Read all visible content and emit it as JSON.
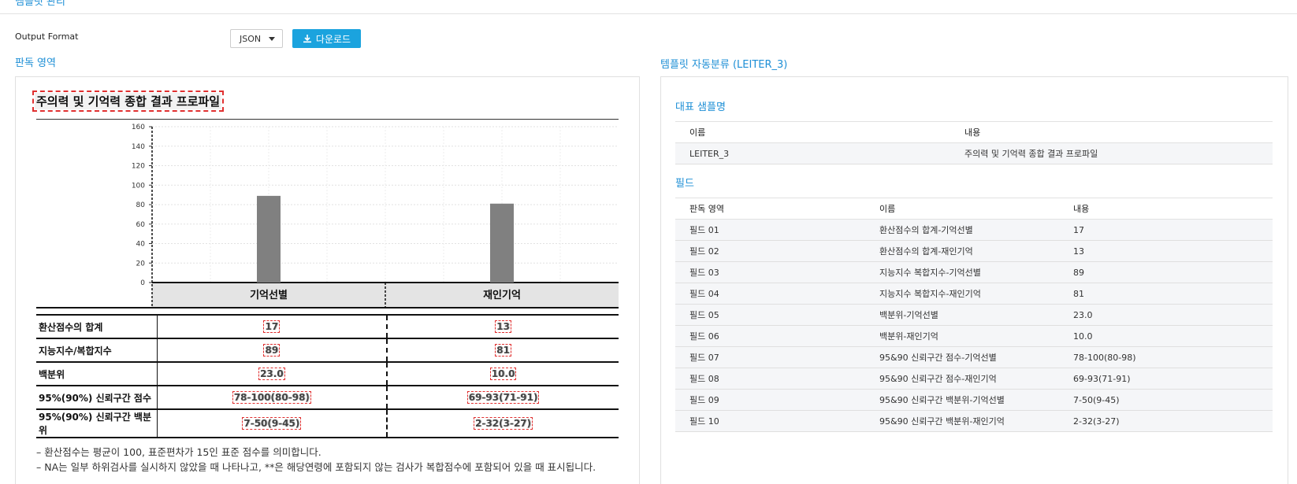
{
  "header": {
    "breadcrumb": "템플릿 관리"
  },
  "toolbar": {
    "format_label": "Output Format",
    "format_value": "JSON",
    "download_label": "다운로드"
  },
  "left": {
    "section_title": "판독 영역",
    "doc_title": "주의력 및 기억력 종합 결과 프로파일",
    "table": {
      "rows": [
        {
          "label": "환산점수의 합계",
          "c1": "17",
          "c2": "13"
        },
        {
          "label": "지능지수/복합지수",
          "c1": "89",
          "c2": "81"
        },
        {
          "label": "백분위",
          "c1": "23.0",
          "c2": "10.0"
        },
        {
          "label": "95%(90%) 신뢰구간 점수",
          "c1": "78-100(80-98)",
          "c2": "69-93(71-91)"
        },
        {
          "label": "95%(90%) 신뢰구간 백분위",
          "c1": "7-50(9-45)",
          "c2": "2-32(3-27)"
        }
      ]
    },
    "notes": [
      "– 환산점수는 평균이 100, 표준편차가 15인 표준 점수를 의미합니다.",
      "– NA는 일부 하위검사를 실시하지 않았을 때 나타나고, **은 해당연령에 포함되지 않는 검사가 복합점수에 포함되어 있을 때 표시됩니다."
    ]
  },
  "chart_data": {
    "type": "bar",
    "categories": [
      "기억선별",
      "재인기억"
    ],
    "values": [
      89,
      81
    ],
    "ylim": [
      0,
      160
    ],
    "yticks": [
      0,
      20,
      40,
      60,
      80,
      100,
      120,
      140,
      160
    ],
    "title": "",
    "xlabel": "",
    "ylabel": "",
    "bar_color": "#808080"
  },
  "right": {
    "section_title": "템플릿 자동분류 (LEITER_3)",
    "sample": {
      "heading": "대표 샘플명",
      "headers": [
        "이름",
        "내용"
      ],
      "rows": [
        {
          "name": "LEITER_3",
          "content": "주의력 및 기억력 종합 결과 프로파일"
        }
      ]
    },
    "fields": {
      "heading": "필드",
      "headers": [
        "판독 영역",
        "이름",
        "내용"
      ],
      "rows": [
        {
          "area": "필드 01",
          "name": "환산점수의 합계-기억선별",
          "content": "17"
        },
        {
          "area": "필드 02",
          "name": "환산점수의 합계-재인기억",
          "content": "13"
        },
        {
          "area": "필드 03",
          "name": "지능지수 복합지수-기억선별",
          "content": "89"
        },
        {
          "area": "필드 04",
          "name": "지능지수 복합지수-재인기억",
          "content": "81"
        },
        {
          "area": "필드 05",
          "name": "백분위-기억선별",
          "content": "23.0"
        },
        {
          "area": "필드 06",
          "name": "백분위-재인기억",
          "content": "10.0"
        },
        {
          "area": "필드 07",
          "name": "95&90 신뢰구간 점수-기억선별",
          "content": "78-100(80-98)"
        },
        {
          "area": "필드 08",
          "name": "95&90 신뢰구간 점수-재인기억",
          "content": "69-93(71-91)"
        },
        {
          "area": "필드 09",
          "name": "95&90 신뢰구간 백분위-기억선별",
          "content": "7-50(9-45)"
        },
        {
          "area": "필드 10",
          "name": "95&90 신뢰구간 백분위-재인기억",
          "content": "2-32(3-27)"
        }
      ]
    }
  },
  "colors": {
    "accent": "#1e8fd6",
    "button": "#1ba3de",
    "highlight": "#e03030"
  }
}
